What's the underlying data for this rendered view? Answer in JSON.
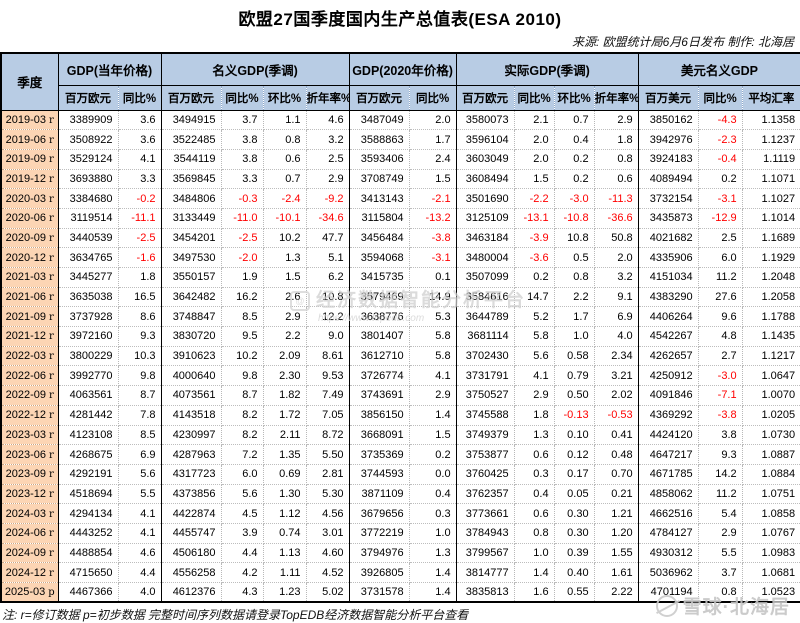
{
  "title": "欧盟27国季度国内生产总值表(ESA 2010)",
  "source": "来源: 欧盟统计局6月6日发布 制作: 北海居",
  "note": "注: r=修订数据 p=初步数据 完整时间序列数据请登录TopEDB经济数据智能分析平台查看",
  "colors": {
    "header_bg": "#b8cce4",
    "quarter_bg": "#fcd5b4",
    "negative": "#ff0000",
    "border": "#000000",
    "watermark": "#c8c8c8"
  },
  "watermarks": {
    "middle_text": "经济数据智能分析平台",
    "middle_url": "https://www.topedb.com",
    "bottom_right_text": "雪球·北海居"
  },
  "table": {
    "quarter_label": "季度",
    "groups": [
      {
        "label": "GDP(当年价格)",
        "span": 2
      },
      {
        "label": "名义GDP(季调)",
        "span": 4
      },
      {
        "label": "GDP(2020年价格)",
        "span": 2
      },
      {
        "label": "实际GDP(季调)",
        "span": 4
      },
      {
        "label": "美元名义GDP",
        "span": 3
      }
    ],
    "sub_headers": [
      "百万欧元",
      "同比%",
      "百万欧元",
      "同比%",
      "环比%",
      "折年率%",
      "百万欧元",
      "同比%",
      "百万欧元",
      "同比%",
      "环比%",
      "折年率%",
      "百万美元",
      "同比%",
      "平均汇率"
    ],
    "rows": [
      {
        "q": "2019-03",
        "s": "r",
        "v": [
          "3389909",
          "3.6",
          "3494915",
          "3.7",
          "1.1",
          "4.6",
          "3487049",
          "2.0",
          "3580073",
          "2.1",
          "0.7",
          "2.9",
          "3850162",
          "-4.3",
          "1.1358"
        ]
      },
      {
        "q": "2019-06",
        "s": "r",
        "v": [
          "3508922",
          "3.6",
          "3522485",
          "3.8",
          "0.8",
          "3.2",
          "3588863",
          "1.7",
          "3596104",
          "2.0",
          "0.4",
          "1.8",
          "3942976",
          "-2.3",
          "1.1237"
        ]
      },
      {
        "q": "2019-09",
        "s": "r",
        "v": [
          "3529124",
          "4.1",
          "3544119",
          "3.8",
          "0.6",
          "2.5",
          "3593406",
          "2.4",
          "3603049",
          "2.0",
          "0.2",
          "0.8",
          "3924183",
          "-0.4",
          "1.1119"
        ]
      },
      {
        "q": "2019-12",
        "s": "r",
        "v": [
          "3693880",
          "3.3",
          "3569845",
          "3.3",
          "0.7",
          "2.9",
          "3708749",
          "1.5",
          "3608494",
          "1.5",
          "0.2",
          "0.6",
          "4089494",
          "0.2",
          "1.1071"
        ]
      },
      {
        "q": "2020-03",
        "s": "r",
        "v": [
          "3384680",
          "-0.2",
          "3484806",
          "-0.3",
          "-2.4",
          "-9.2",
          "3413143",
          "-2.1",
          "3501690",
          "-2.2",
          "-3.0",
          "-11.3",
          "3732154",
          "-3.1",
          "1.1027"
        ]
      },
      {
        "q": "2020-06",
        "s": "r",
        "v": [
          "3119514",
          "-11.1",
          "3133449",
          "-11.0",
          "-10.1",
          "-34.6",
          "3115804",
          "-13.2",
          "3125109",
          "-13.1",
          "-10.8",
          "-36.6",
          "3435873",
          "-12.9",
          "1.1014"
        ]
      },
      {
        "q": "2020-09",
        "s": "r",
        "v": [
          "3440539",
          "-2.5",
          "3454201",
          "-2.5",
          "10.2",
          "47.7",
          "3456484",
          "-3.8",
          "3463184",
          "-3.9",
          "10.8",
          "50.8",
          "4021682",
          "2.5",
          "1.1689"
        ]
      },
      {
        "q": "2020-12",
        "s": "r",
        "v": [
          "3634765",
          "-1.6",
          "3497530",
          "-2.0",
          "1.3",
          "5.1",
          "3594068",
          "-3.1",
          "3480004",
          "-3.6",
          "0.5",
          "2.0",
          "4335906",
          "6.0",
          "1.1929"
        ]
      },
      {
        "q": "2021-03",
        "s": "r",
        "v": [
          "3445277",
          "1.8",
          "3550157",
          "1.9",
          "1.5",
          "6.2",
          "3415735",
          "0.1",
          "3507099",
          "0.2",
          "0.8",
          "3.2",
          "4151034",
          "11.2",
          "1.2048"
        ]
      },
      {
        "q": "2021-06",
        "s": "r",
        "v": [
          "3635038",
          "16.5",
          "3642482",
          "16.2",
          "2.6",
          "10.8",
          "3579469",
          "14.9",
          "3584616",
          "14.7",
          "2.2",
          "9.1",
          "4383290",
          "27.6",
          "1.2058"
        ]
      },
      {
        "q": "2021-09",
        "s": "r",
        "v": [
          "3737928",
          "8.6",
          "3748847",
          "8.5",
          "2.9",
          "12.2",
          "3638776",
          "5.3",
          "3644789",
          "5.2",
          "1.7",
          "6.9",
          "4406264",
          "9.6",
          "1.1788"
        ]
      },
      {
        "q": "2021-12",
        "s": "r",
        "v": [
          "3972160",
          "9.3",
          "3830720",
          "9.5",
          "2.2",
          "9.0",
          "3801407",
          "5.8",
          "3681114",
          "5.8",
          "1.0",
          "4.0",
          "4542267",
          "4.8",
          "1.1435"
        ]
      },
      {
        "q": "2022-03",
        "s": "r",
        "v": [
          "3800229",
          "10.3",
          "3910623",
          "10.2",
          "2.09",
          "8.61",
          "3612710",
          "5.8",
          "3702430",
          "5.6",
          "0.58",
          "2.34",
          "4262657",
          "2.7",
          "1.1217"
        ]
      },
      {
        "q": "2022-06",
        "s": "r",
        "v": [
          "3992770",
          "9.8",
          "4000640",
          "9.8",
          "2.30",
          "9.53",
          "3726774",
          "4.1",
          "3731791",
          "4.1",
          "0.79",
          "3.21",
          "4250912",
          "-3.0",
          "1.0647"
        ]
      },
      {
        "q": "2022-09",
        "s": "r",
        "v": [
          "4063561",
          "8.7",
          "4073561",
          "8.7",
          "1.82",
          "7.49",
          "3743691",
          "2.9",
          "3750527",
          "2.9",
          "0.50",
          "2.02",
          "4091846",
          "-7.1",
          "1.0070"
        ]
      },
      {
        "q": "2022-12",
        "s": "r",
        "v": [
          "4281442",
          "7.8",
          "4143518",
          "8.2",
          "1.72",
          "7.05",
          "3856150",
          "1.4",
          "3745588",
          "1.8",
          "-0.13",
          "-0.53",
          "4369292",
          "-3.8",
          "1.0205"
        ]
      },
      {
        "q": "2023-03",
        "s": "r",
        "v": [
          "4123108",
          "8.5",
          "4230997",
          "8.2",
          "2.11",
          "8.72",
          "3668091",
          "1.5",
          "3749379",
          "1.3",
          "0.10",
          "0.41",
          "4424120",
          "3.8",
          "1.0730"
        ]
      },
      {
        "q": "2023-06",
        "s": "r",
        "v": [
          "4268675",
          "6.9",
          "4287963",
          "7.2",
          "1.35",
          "5.50",
          "3735369",
          "0.2",
          "3753877",
          "0.6",
          "0.12",
          "0.48",
          "4647217",
          "9.3",
          "1.0887"
        ]
      },
      {
        "q": "2023-09",
        "s": "r",
        "v": [
          "4292191",
          "5.6",
          "4317723",
          "6.0",
          "0.69",
          "2.81",
          "3744593",
          "0.0",
          "3760425",
          "0.3",
          "0.17",
          "0.70",
          "4671785",
          "14.2",
          "1.0884"
        ]
      },
      {
        "q": "2023-12",
        "s": "r",
        "v": [
          "4518694",
          "5.5",
          "4373856",
          "5.6",
          "1.30",
          "5.30",
          "3871109",
          "0.4",
          "3762357",
          "0.4",
          "0.05",
          "0.21",
          "4858062",
          "11.2",
          "1.0751"
        ]
      },
      {
        "q": "2024-03",
        "s": "r",
        "v": [
          "4294134",
          "4.1",
          "4422874",
          "4.5",
          "1.12",
          "4.56",
          "3679656",
          "0.3",
          "3773661",
          "0.6",
          "0.30",
          "1.21",
          "4662516",
          "5.4",
          "1.0858"
        ]
      },
      {
        "q": "2024-06",
        "s": "r",
        "v": [
          "4443252",
          "4.1",
          "4455747",
          "3.9",
          "0.74",
          "3.01",
          "3772219",
          "1.0",
          "3784943",
          "0.8",
          "0.30",
          "1.20",
          "4784127",
          "2.9",
          "1.0767"
        ]
      },
      {
        "q": "2024-09",
        "s": "r",
        "v": [
          "4488854",
          "4.6",
          "4506180",
          "4.4",
          "1.13",
          "4.60",
          "3794976",
          "1.3",
          "3799567",
          "1.0",
          "0.39",
          "1.55",
          "4930312",
          "5.5",
          "1.0983"
        ]
      },
      {
        "q": "2024-12",
        "s": "r",
        "v": [
          "4715650",
          "4.4",
          "4556258",
          "4.2",
          "1.11",
          "4.52",
          "3926805",
          "1.4",
          "3814777",
          "1.4",
          "0.40",
          "1.61",
          "5036962",
          "3.7",
          "1.0681"
        ]
      },
      {
        "q": "2025-03",
        "s": "p",
        "v": [
          "4467366",
          "4.0",
          "4612376",
          "4.3",
          "1.23",
          "5.02",
          "3731578",
          "1.4",
          "3835813",
          "1.6",
          "0.55",
          "2.22",
          "4701194",
          "0.8",
          "1.0523"
        ]
      }
    ]
  }
}
